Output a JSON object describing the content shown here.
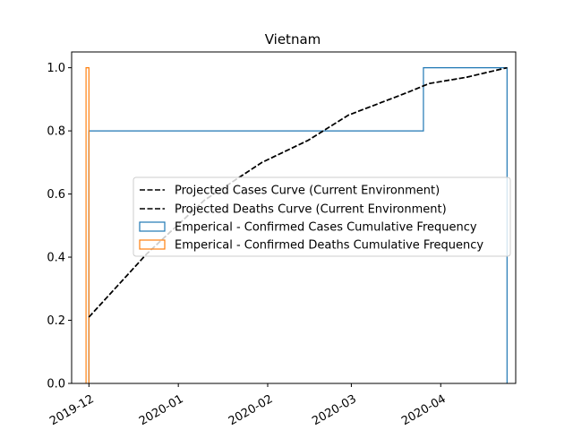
{
  "chart_data": {
    "type": "line",
    "title": "Vietnam",
    "xlabel": "",
    "ylabel": "",
    "x_axis": {
      "type": "date",
      "range": [
        "2019-11-25",
        "2020-04-27"
      ],
      "ticks": [
        {
          "date": "2019-12-01",
          "label": "2019-12"
        },
        {
          "date": "2020-01-01",
          "label": "2020-01"
        },
        {
          "date": "2020-02-01",
          "label": "2020-02"
        },
        {
          "date": "2020-03-01",
          "label": "2020-03"
        },
        {
          "date": "2020-04-01",
          "label": "2020-04"
        }
      ],
      "tick_rotation": 30
    },
    "y_axis": {
      "range": [
        0.0,
        1.05
      ],
      "ticks": [
        {
          "value": 0.0,
          "label": "0.0"
        },
        {
          "value": 0.2,
          "label": "0.2"
        },
        {
          "value": 0.4,
          "label": "0.4"
        },
        {
          "value": 0.6,
          "label": "0.6"
        },
        {
          "value": 0.8,
          "label": "0.8"
        },
        {
          "value": 1.0,
          "label": "1.0"
        }
      ]
    },
    "grid": false,
    "legend_placement": "center-right",
    "series": [
      {
        "name": "Projected Cases Curve (Current Environment)",
        "style": "dashed-line",
        "color": "#000000",
        "points": [
          {
            "x": "2019-12-01",
            "y": 0.21
          },
          {
            "x": "2019-12-21",
            "y": 0.41
          },
          {
            "x": "2020-01-10",
            "y": 0.58
          },
          {
            "x": "2020-01-30",
            "y": 0.7
          },
          {
            "x": "2020-02-15",
            "y": 0.77
          },
          {
            "x": "2020-02-29",
            "y": 0.85
          },
          {
            "x": "2020-03-20",
            "y": 0.92
          },
          {
            "x": "2020-03-28",
            "y": 0.95
          },
          {
            "x": "2020-04-10",
            "y": 0.97
          },
          {
            "x": "2020-04-24",
            "y": 1.0
          }
        ]
      },
      {
        "name": "Projected Deaths Curve (Current Environment)",
        "style": "dashed-line",
        "color": "#000000",
        "points": [
          {
            "x": "2019-12-01",
            "y": 0.21
          },
          {
            "x": "2019-12-21",
            "y": 0.41
          },
          {
            "x": "2020-01-10",
            "y": 0.58
          },
          {
            "x": "2020-01-30",
            "y": 0.7
          },
          {
            "x": "2020-02-15",
            "y": 0.77
          },
          {
            "x": "2020-02-29",
            "y": 0.85
          },
          {
            "x": "2020-03-20",
            "y": 0.92
          },
          {
            "x": "2020-03-28",
            "y": 0.95
          },
          {
            "x": "2020-04-10",
            "y": 0.97
          },
          {
            "x": "2020-04-24",
            "y": 1.0
          }
        ]
      },
      {
        "name": "Emperical - Confirmed Cases Cumulative Frequency",
        "style": "step-histogram",
        "color": "#1f77b4",
        "points": [
          {
            "x": "2019-12-01",
            "y": 0.0
          },
          {
            "x": "2019-12-01",
            "y": 0.8
          },
          {
            "x": "2020-03-26",
            "y": 0.8
          },
          {
            "x": "2020-03-26",
            "y": 1.0
          },
          {
            "x": "2020-04-24",
            "y": 1.0
          },
          {
            "x": "2020-04-24",
            "y": 0.0
          }
        ]
      },
      {
        "name": "Emperical - Confirmed Deaths Cumulative Frequency",
        "style": "step-histogram",
        "color": "#ff7f0e",
        "points": [
          {
            "x": "2019-11-30",
            "y": 0.0
          },
          {
            "x": "2019-11-30",
            "y": 1.0
          },
          {
            "x": "2019-12-01",
            "y": 1.0
          },
          {
            "x": "2019-12-01",
            "y": 0.0
          }
        ]
      }
    ]
  }
}
